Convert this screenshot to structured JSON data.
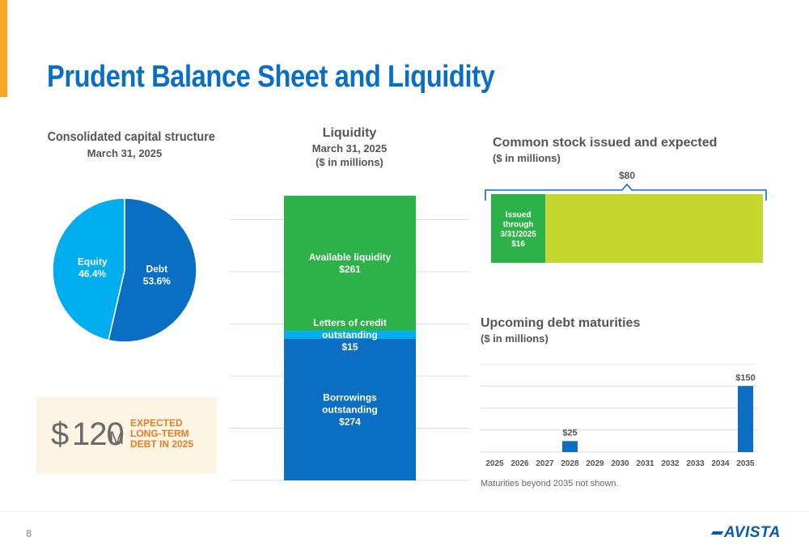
{
  "page": {
    "title": "Prudent Balance Sheet and Liquidity",
    "page_number": "8",
    "logo_text": "AVISTA"
  },
  "capital": {
    "title": "Consolidated capital structure",
    "subtitle": "March 31, 2025"
  },
  "liquidity": {
    "title": "Liquidity",
    "subtitle1": "March 31, 2025",
    "subtitle2": "($ in millions)"
  },
  "stock": {
    "title": "Common stock issued and expected",
    "subtitle": "($ in millions)"
  },
  "maturities": {
    "title": "Upcoming debt maturities",
    "subtitle": "($ in millions)",
    "footnote": "Maturities beyond 2035 not shown."
  },
  "callout": {
    "dollar": "$",
    "value": "120",
    "unit": "M",
    "text": "EXPECTED LONG-TERM DEBT IN 2025"
  },
  "chart_data": [
    {
      "type": "pie",
      "slices": [
        {
          "label": "Debt",
          "value_label": "53.6%",
          "value": 53.6,
          "color": "#0a6fc2"
        },
        {
          "label": "Equity",
          "value_label": "46.4%",
          "value": 46.4,
          "color": "#00adef"
        }
      ]
    },
    {
      "type": "bar",
      "stacked": true,
      "categories": [
        ""
      ],
      "series": [
        {
          "name_lines": [
            "Borrowings",
            "outstanding"
          ],
          "value_label": "$274",
          "value": 274,
          "color": "#0a6fc2"
        },
        {
          "name_lines": [
            "Letters of credit",
            "outstanding"
          ],
          "value_label": "$15",
          "value": 15,
          "color": "#00adef"
        },
        {
          "name_lines": [
            "Available liquidity"
          ],
          "value_label": "$261",
          "value": 261,
          "color": "#2db24a"
        }
      ],
      "grid": true
    },
    {
      "type": "bar",
      "orientation": "horizontal",
      "stacked": true,
      "total_label": "$80",
      "total": 80,
      "series": [
        {
          "name_lines": [
            "Issued",
            "through",
            "3/31/2025"
          ],
          "value_label": "$16",
          "value": 16,
          "color": "#2db24a"
        },
        {
          "value": 64,
          "color": "#c2d82e"
        }
      ]
    },
    {
      "type": "bar",
      "categories": [
        "2025",
        "2026",
        "2027",
        "2028",
        "2029",
        "2030",
        "2031",
        "2032",
        "2033",
        "2034",
        "2035"
      ],
      "values": [
        0,
        0,
        0,
        25,
        0,
        0,
        0,
        0,
        0,
        0,
        150
      ],
      "data_labels": [
        "",
        "",
        "",
        "$25",
        "",
        "",
        "",
        "",
        "",
        "",
        "$150"
      ],
      "color": "#0a6fc2",
      "ylim": [
        0,
        200
      ],
      "grid": true
    }
  ]
}
